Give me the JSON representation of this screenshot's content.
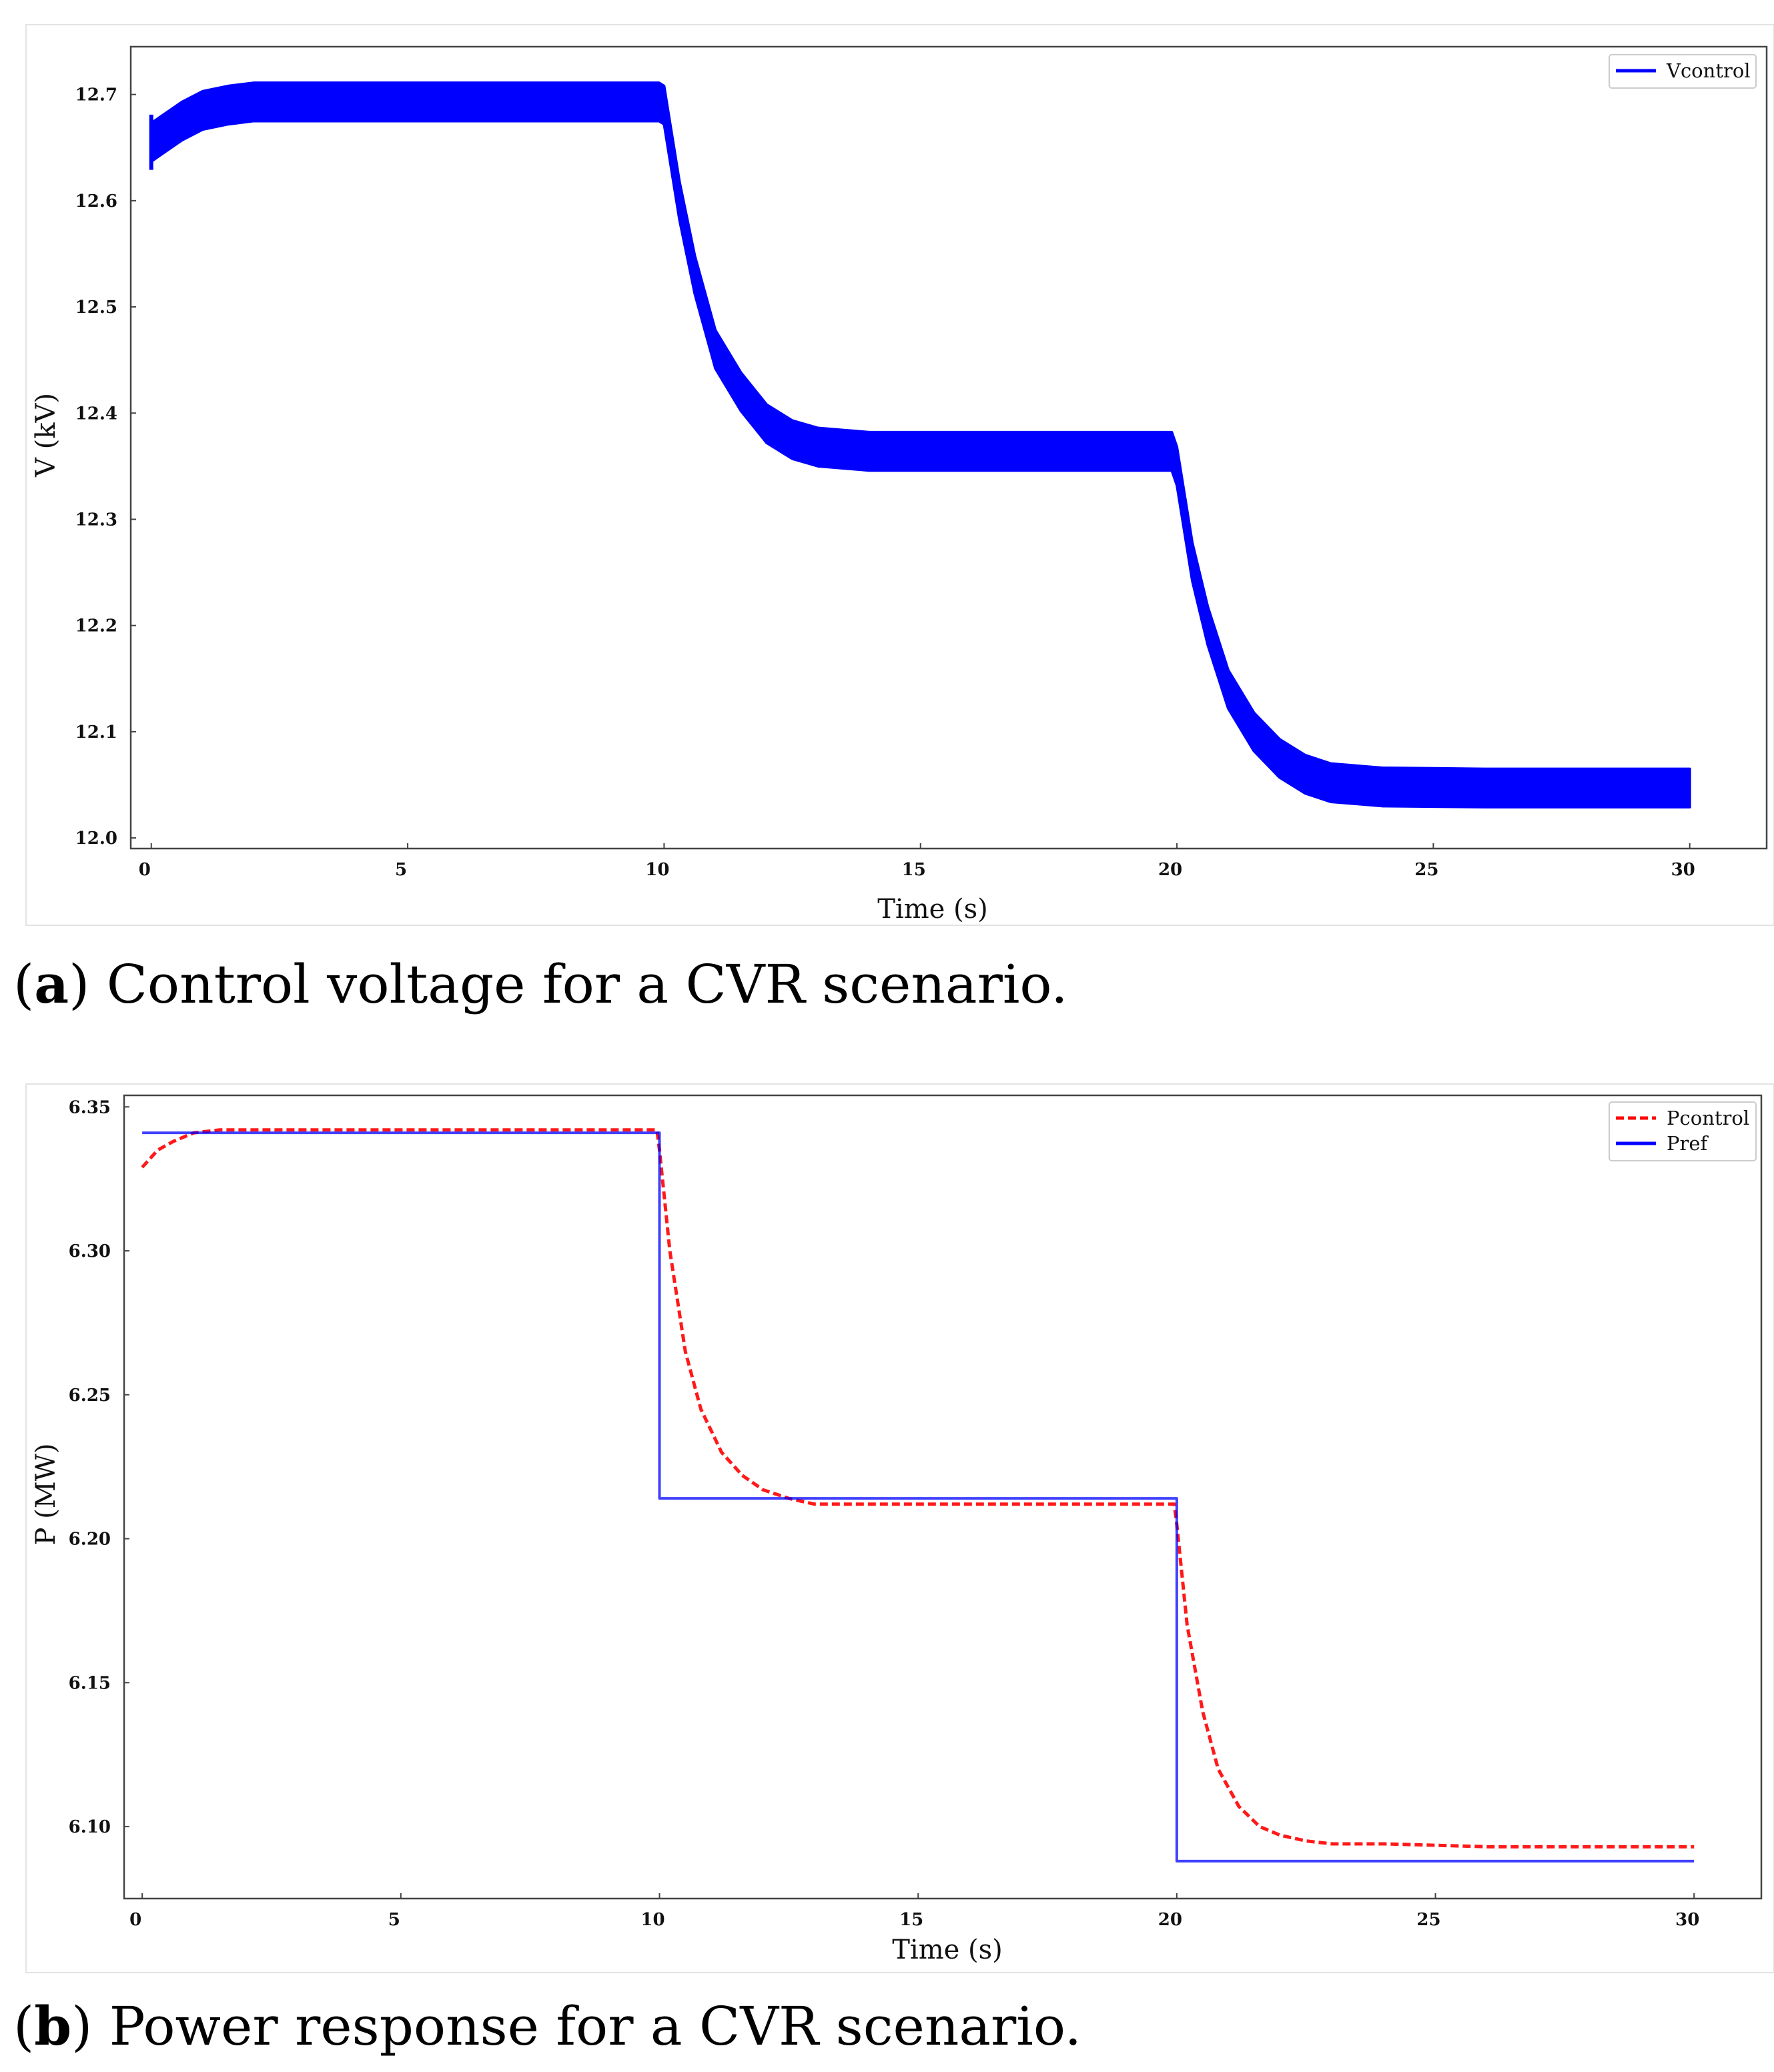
{
  "chart_data": [
    {
      "id": "a",
      "type": "line",
      "title": "",
      "xlabel": "Time (s)",
      "ylabel": "V (kV)",
      "xlim": [
        -0.4,
        31.5
      ],
      "ylim": [
        11.99,
        12.745
      ],
      "xticks": [
        0,
        5,
        10,
        15,
        20,
        25,
        30
      ],
      "xtick_labels": [
        "0",
        "5",
        "10",
        "15",
        "20",
        "25",
        "30"
      ],
      "yticks": [
        12.0,
        12.1,
        12.2,
        12.3,
        12.4,
        12.5,
        12.6,
        12.7
      ],
      "ytick_labels": [
        "12.0",
        "12.1",
        "12.2",
        "12.3",
        "12.4",
        "12.5",
        "12.6",
        "12.7"
      ],
      "legend_position": "top-right",
      "grid": false,
      "series": [
        {
          "name": "Vcontrol",
          "color": "#0000ff",
          "style": "solid-band",
          "x": [
            0,
            0.3,
            0.6,
            1,
            1.5,
            2,
            4,
            6,
            8,
            9.9,
            10,
            10.3,
            10.6,
            11,
            11.5,
            12,
            12.5,
            13,
            14,
            16,
            18,
            19.9,
            20,
            20.3,
            20.6,
            21,
            21.5,
            22,
            22.5,
            23,
            24,
            26,
            28,
            30
          ],
          "y": [
            12.655,
            12.665,
            12.675,
            12.685,
            12.69,
            12.693,
            12.693,
            12.693,
            12.693,
            12.693,
            12.69,
            12.6,
            12.53,
            12.46,
            12.42,
            12.39,
            12.375,
            12.368,
            12.364,
            12.364,
            12.364,
            12.364,
            12.35,
            12.26,
            12.2,
            12.14,
            12.1,
            12.075,
            12.06,
            12.052,
            12.048,
            12.047,
            12.047,
            12.047
          ],
          "band_halfwidth": 0.018
        }
      ]
    },
    {
      "id": "b",
      "type": "line",
      "title": "",
      "xlabel": "Time (s)",
      "ylabel": "P (MW)",
      "xlim": [
        -0.35,
        31.3
      ],
      "ylim": [
        6.075,
        6.354
      ],
      "xticks": [
        0,
        5,
        10,
        15,
        20,
        25,
        30
      ],
      "xtick_labels": [
        "0",
        "5",
        "10",
        "15",
        "20",
        "25",
        "30"
      ],
      "yticks": [
        6.1,
        6.15,
        6.2,
        6.25,
        6.3,
        6.35
      ],
      "ytick_labels": [
        "6.10",
        "6.15",
        "6.20",
        "6.25",
        "6.30",
        "6.35"
      ],
      "legend_position": "top-right",
      "grid": false,
      "series": [
        {
          "name": "Pcontrol",
          "color": "#ff0000",
          "style": "dashed",
          "x": [
            0,
            0.3,
            0.6,
            1,
            1.5,
            2,
            4,
            6,
            8,
            9.95,
            10,
            10.2,
            10.5,
            10.8,
            11.2,
            11.6,
            12,
            12.5,
            13,
            14,
            16,
            18,
            19.95,
            20,
            20.2,
            20.5,
            20.8,
            21.2,
            21.6,
            22,
            22.5,
            23,
            24,
            26,
            28,
            30
          ],
          "y": [
            6.329,
            6.335,
            6.338,
            6.341,
            6.342,
            6.342,
            6.342,
            6.342,
            6.342,
            6.342,
            6.335,
            6.3,
            6.265,
            6.245,
            6.23,
            6.222,
            6.217,
            6.214,
            6.212,
            6.212,
            6.212,
            6.212,
            6.212,
            6.205,
            6.17,
            6.14,
            6.12,
            6.107,
            6.1,
            6.097,
            6.095,
            6.094,
            6.094,
            6.093,
            6.093,
            6.093
          ]
        },
        {
          "name": "Pref",
          "color": "#0000ff",
          "style": "solid",
          "x": [
            0,
            10,
            10,
            20,
            20,
            30
          ],
          "y": [
            6.341,
            6.341,
            6.214,
            6.214,
            6.088,
            6.088
          ]
        }
      ]
    }
  ],
  "captions": {
    "a": {
      "letter": "a",
      "text": " Control voltage for a CVR scenario."
    },
    "b": {
      "letter": "b",
      "text": " Power response for a CVR scenario."
    }
  },
  "punct": {
    "open": "(",
    "close": ")"
  }
}
